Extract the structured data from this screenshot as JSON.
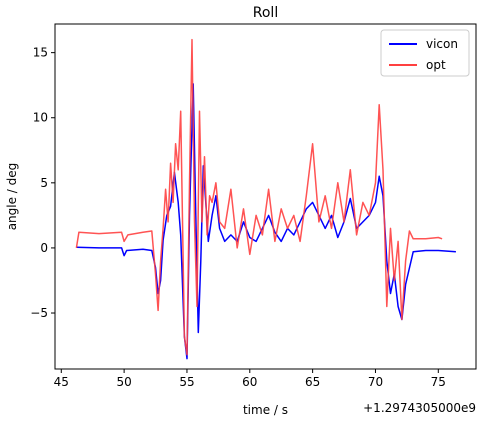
{
  "chart_data": {
    "type": "line",
    "title": "Roll",
    "xlabel": "time / s",
    "ylabel": "angle / deg",
    "x_offset_label": "+1.2974305000e9",
    "xlim": [
      44.5,
      78.0
    ],
    "ylim": [
      -9.3,
      17.2
    ],
    "x_ticks": [
      45,
      50,
      55,
      60,
      65,
      70,
      75
    ],
    "y_ticks": [
      -5,
      0,
      5,
      10,
      15
    ],
    "x_tick_labels": [
      "45",
      "50",
      "55",
      "60",
      "65",
      "70",
      "75"
    ],
    "y_tick_labels": [
      "−5",
      "0",
      "5",
      "10",
      "15"
    ],
    "grid": false,
    "legend_position": "top-right",
    "series": [
      {
        "name": "vicon",
        "color": "#0000ff",
        "x": [
          46.2,
          48,
          49.8,
          50.0,
          50.2,
          51.5,
          52.2,
          52.5,
          52.7,
          52.9,
          53.1,
          53.4,
          53.7,
          54.0,
          54.3,
          54.5,
          54.8,
          55.0,
          55.2,
          55.5,
          55.7,
          55.9,
          56.1,
          56.3,
          56.5,
          56.7,
          57.0,
          57.3,
          57.6,
          58.0,
          58.5,
          59.0,
          59.5,
          60.0,
          60.5,
          61.0,
          61.5,
          62.0,
          62.5,
          63.0,
          63.5,
          64.0,
          64.5,
          65.0,
          65.5,
          66.0,
          66.5,
          67.0,
          67.5,
          68.0,
          68.5,
          69.0,
          69.5,
          70.0,
          70.3,
          70.6,
          70.9,
          71.2,
          71.5,
          71.8,
          72.1,
          72.4,
          73.0,
          74.0,
          75.0,
          76.4
        ],
        "y": [
          0.05,
          0.0,
          0.0,
          -0.6,
          -0.2,
          -0.1,
          -0.2,
          -1.5,
          -3.5,
          -2.5,
          0.6,
          2.5,
          3.2,
          5.8,
          3.5,
          1.0,
          -6.8,
          -8.5,
          2.5,
          12.6,
          2.5,
          -6.5,
          -1.0,
          6.3,
          3.5,
          0.5,
          2.5,
          4.0,
          1.5,
          0.5,
          1.0,
          0.5,
          2.0,
          0.8,
          0.5,
          1.5,
          2.5,
          1.2,
          0.5,
          1.5,
          1.0,
          2.0,
          3.0,
          3.5,
          2.5,
          1.5,
          2.5,
          0.8,
          2.0,
          3.8,
          1.5,
          2.0,
          2.5,
          3.5,
          5.5,
          4.0,
          -1.0,
          -3.5,
          -2.0,
          -4.5,
          -5.5,
          -2.8,
          -0.3,
          -0.2,
          -0.2,
          -0.3
        ]
      },
      {
        "name": "opt",
        "color": "#ff4040",
        "x": [
          46.2,
          46.4,
          48,
          49.8,
          50.0,
          50.3,
          51.5,
          52.2,
          52.5,
          52.7,
          52.9,
          53.1,
          53.3,
          53.5,
          53.7,
          53.9,
          54.1,
          54.3,
          54.5,
          54.8,
          55.0,
          55.2,
          55.4,
          55.6,
          55.8,
          56.0,
          56.2,
          56.4,
          56.6,
          56.8,
          57.0,
          57.3,
          57.6,
          58.0,
          58.5,
          59.0,
          59.5,
          60.0,
          60.5,
          61.0,
          61.5,
          62.0,
          62.5,
          63.0,
          63.5,
          64.0,
          64.5,
          65.0,
          65.5,
          66.0,
          66.5,
          67.0,
          67.5,
          68.0,
          68.5,
          69.0,
          69.5,
          70.0,
          70.3,
          70.6,
          70.9,
          71.2,
          71.5,
          71.8,
          72.1,
          72.4,
          72.7,
          73.0,
          74.0,
          75.0,
          75.3
        ],
        "y": [
          0.0,
          1.2,
          1.1,
          1.2,
          0.5,
          1.0,
          1.2,
          1.3,
          -2.0,
          -4.8,
          -1.0,
          1.5,
          4.5,
          2.0,
          6.5,
          3.5,
          8.0,
          6.0,
          10.5,
          -6.8,
          -8.2,
          5.0,
          16.0,
          2.0,
          -4.5,
          10.5,
          2.0,
          7.0,
          1.0,
          4.0,
          3.5,
          5.0,
          2.0,
          1.5,
          4.5,
          0.0,
          3.0,
          -0.5,
          2.5,
          1.0,
          4.5,
          0.5,
          3.0,
          1.5,
          2.5,
          0.5,
          4.0,
          8.0,
          2.0,
          4.0,
          1.5,
          5.0,
          2.0,
          6.0,
          1.0,
          3.5,
          2.5,
          5.0,
          11.0,
          6.0,
          -4.5,
          1.5,
          -2.5,
          0.5,
          -5.5,
          -1.0,
          1.3,
          0.7,
          0.7,
          0.8,
          0.7
        ]
      }
    ]
  }
}
